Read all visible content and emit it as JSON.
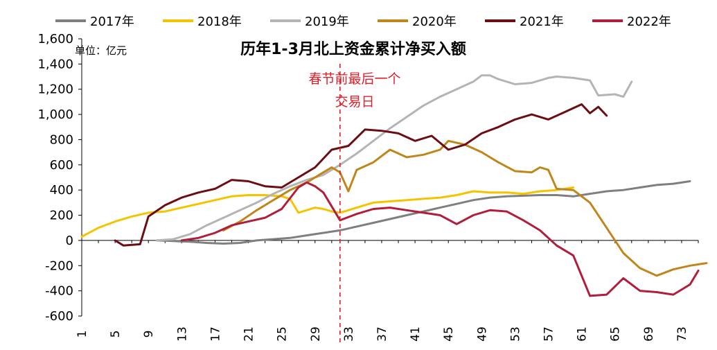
{
  "chart_data": {
    "type": "line",
    "title": "历年1-3月北上资金累计净买入额",
    "unit_label": "单位：亿元",
    "annotation": "春节前最后一个\n交易日",
    "annotation_x": 32,
    "ylim": [
      -600,
      1600
    ],
    "yticks": [
      -600,
      -400,
      -200,
      0,
      200,
      400,
      600,
      800,
      1000,
      1200,
      1400,
      1600
    ],
    "y_tick_labels": [
      "-600",
      "-400",
      "-200",
      "0",
      "200",
      "400",
      "600",
      "800",
      "1,000",
      "1,200",
      "1,400",
      "1,600"
    ],
    "xlim": [
      1,
      75
    ],
    "xticks": [
      1,
      5,
      9,
      13,
      17,
      21,
      25,
      29,
      33,
      37,
      41,
      45,
      49,
      53,
      57,
      61,
      65,
      69,
      73
    ],
    "grid": false,
    "legend_position": "top",
    "series": [
      {
        "name": "2017年",
        "color": "#7f7f7f",
        "points": [
          [
            10,
            0
          ],
          [
            12,
            -5
          ],
          [
            14,
            -10
          ],
          [
            16,
            -20
          ],
          [
            18,
            -25
          ],
          [
            20,
            -20
          ],
          [
            22,
            0
          ],
          [
            24,
            10
          ],
          [
            26,
            20
          ],
          [
            28,
            40
          ],
          [
            30,
            60
          ],
          [
            32,
            80
          ],
          [
            34,
            110
          ],
          [
            36,
            140
          ],
          [
            38,
            170
          ],
          [
            40,
            200
          ],
          [
            42,
            230
          ],
          [
            44,
            260
          ],
          [
            46,
            290
          ],
          [
            48,
            320
          ],
          [
            50,
            340
          ],
          [
            52,
            350
          ],
          [
            54,
            355
          ],
          [
            56,
            360
          ],
          [
            58,
            360
          ],
          [
            60,
            350
          ],
          [
            62,
            370
          ],
          [
            64,
            390
          ],
          [
            66,
            400
          ],
          [
            68,
            420
          ],
          [
            70,
            440
          ],
          [
            72,
            450
          ],
          [
            74,
            470
          ]
        ]
      },
      {
        "name": "2018年",
        "color": "#f5c400",
        "points": [
          [
            1,
            30
          ],
          [
            3,
            100
          ],
          [
            5,
            150
          ],
          [
            7,
            190
          ],
          [
            9,
            220
          ],
          [
            11,
            230
          ],
          [
            13,
            260
          ],
          [
            15,
            290
          ],
          [
            17,
            320
          ],
          [
            19,
            350
          ],
          [
            21,
            360
          ],
          [
            23,
            360
          ],
          [
            25,
            350
          ],
          [
            26,
            330
          ],
          [
            27,
            220
          ],
          [
            28,
            240
          ],
          [
            29,
            260
          ],
          [
            30,
            250
          ],
          [
            31,
            230
          ],
          [
            32,
            220
          ],
          [
            34,
            260
          ],
          [
            36,
            300
          ],
          [
            38,
            310
          ],
          [
            40,
            320
          ],
          [
            42,
            330
          ],
          [
            44,
            340
          ],
          [
            46,
            360
          ],
          [
            48,
            390
          ],
          [
            50,
            380
          ],
          [
            52,
            380
          ],
          [
            54,
            370
          ],
          [
            56,
            390
          ],
          [
            58,
            400
          ],
          [
            60,
            420
          ]
        ]
      },
      {
        "name": "2019年",
        "color": "#b4b4b4",
        "points": [
          [
            10,
            0
          ],
          [
            12,
            10
          ],
          [
            14,
            50
          ],
          [
            16,
            120
          ],
          [
            18,
            180
          ],
          [
            20,
            240
          ],
          [
            22,
            300
          ],
          [
            24,
            370
          ],
          [
            26,
            430
          ],
          [
            28,
            480
          ],
          [
            30,
            520
          ],
          [
            32,
            600
          ],
          [
            34,
            690
          ],
          [
            36,
            790
          ],
          [
            38,
            890
          ],
          [
            40,
            980
          ],
          [
            42,
            1070
          ],
          [
            44,
            1140
          ],
          [
            46,
            1200
          ],
          [
            48,
            1260
          ],
          [
            49,
            1310
          ],
          [
            50,
            1310
          ],
          [
            51,
            1280
          ],
          [
            53,
            1240
          ],
          [
            55,
            1250
          ],
          [
            57,
            1290
          ],
          [
            58,
            1300
          ],
          [
            60,
            1290
          ],
          [
            62,
            1270
          ],
          [
            63,
            1150
          ],
          [
            65,
            1160
          ],
          [
            66,
            1140
          ],
          [
            67,
            1260
          ]
        ]
      },
      {
        "name": "2020年",
        "color": "#c0861c",
        "points": [
          [
            18,
            80
          ],
          [
            20,
            150
          ],
          [
            22,
            240
          ],
          [
            24,
            320
          ],
          [
            26,
            400
          ],
          [
            28,
            460
          ],
          [
            30,
            540
          ],
          [
            31,
            580
          ],
          [
            32,
            540
          ],
          [
            33,
            390
          ],
          [
            34,
            560
          ],
          [
            36,
            620
          ],
          [
            38,
            720
          ],
          [
            40,
            660
          ],
          [
            42,
            680
          ],
          [
            44,
            720
          ],
          [
            45,
            790
          ],
          [
            47,
            760
          ],
          [
            49,
            700
          ],
          [
            51,
            620
          ],
          [
            53,
            550
          ],
          [
            55,
            540
          ],
          [
            56,
            580
          ],
          [
            57,
            560
          ],
          [
            58,
            410
          ],
          [
            60,
            400
          ],
          [
            62,
            300
          ],
          [
            64,
            100
          ],
          [
            66,
            -100
          ],
          [
            68,
            -220
          ],
          [
            70,
            -280
          ],
          [
            72,
            -230
          ],
          [
            74,
            -200
          ],
          [
            76,
            -180
          ]
        ]
      },
      {
        "name": "2021年",
        "color": "#6b0d12",
        "points": [
          [
            5,
            0
          ],
          [
            6,
            -40
          ],
          [
            8,
            -30
          ],
          [
            9,
            190
          ],
          [
            11,
            280
          ],
          [
            13,
            340
          ],
          [
            15,
            380
          ],
          [
            17,
            410
          ],
          [
            19,
            480
          ],
          [
            21,
            470
          ],
          [
            23,
            430
          ],
          [
            25,
            420
          ],
          [
            27,
            500
          ],
          [
            29,
            580
          ],
          [
            31,
            720
          ],
          [
            33,
            750
          ],
          [
            35,
            880
          ],
          [
            37,
            870
          ],
          [
            39,
            850
          ],
          [
            41,
            790
          ],
          [
            43,
            830
          ],
          [
            45,
            720
          ],
          [
            47,
            760
          ],
          [
            49,
            850
          ],
          [
            51,
            900
          ],
          [
            53,
            960
          ],
          [
            55,
            1000
          ],
          [
            57,
            960
          ],
          [
            59,
            1020
          ],
          [
            61,
            1080
          ],
          [
            62,
            1010
          ],
          [
            63,
            1060
          ],
          [
            64,
            990
          ]
        ]
      },
      {
        "name": "2022年",
        "color": "#b01e3c",
        "points": [
          [
            13,
            0
          ],
          [
            15,
            20
          ],
          [
            17,
            60
          ],
          [
            19,
            120
          ],
          [
            21,
            150
          ],
          [
            23,
            180
          ],
          [
            25,
            250
          ],
          [
            27,
            420
          ],
          [
            28,
            460
          ],
          [
            29,
            430
          ],
          [
            30,
            380
          ],
          [
            31,
            270
          ],
          [
            32,
            160
          ],
          [
            34,
            210
          ],
          [
            36,
            250
          ],
          [
            38,
            260
          ],
          [
            40,
            240
          ],
          [
            42,
            220
          ],
          [
            44,
            200
          ],
          [
            46,
            130
          ],
          [
            48,
            200
          ],
          [
            50,
            240
          ],
          [
            52,
            230
          ],
          [
            54,
            160
          ],
          [
            56,
            80
          ],
          [
            58,
            -40
          ],
          [
            60,
            -120
          ],
          [
            62,
            -440
          ],
          [
            64,
            -430
          ],
          [
            66,
            -300
          ],
          [
            68,
            -400
          ],
          [
            70,
            -410
          ],
          [
            72,
            -430
          ],
          [
            74,
            -350
          ],
          [
            75,
            -240
          ]
        ]
      }
    ]
  }
}
